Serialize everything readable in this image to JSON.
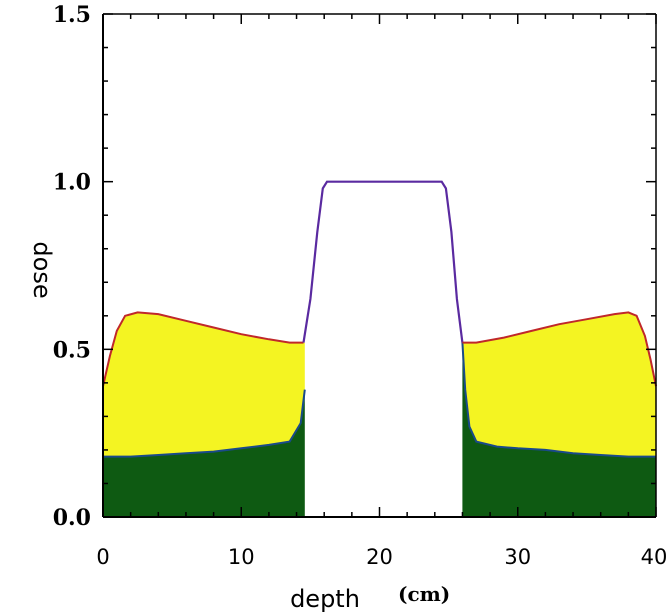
{
  "chart_data": {
    "type": "area",
    "xlabel": "depth",
    "xlabel_unit": "(cm)",
    "ylabel": "dose",
    "xlim": [
      0,
      40
    ],
    "ylim": [
      0,
      1.5
    ],
    "x_ticks": [
      "0",
      "10",
      "20",
      "30",
      "40"
    ],
    "y_ticks": [
      "0.0",
      "0.5",
      "1.0",
      "1.5"
    ],
    "grid": false,
    "colors": {
      "lower_fill": "#0e5a12",
      "middle_fill": "#f4f422",
      "total_line": "#c0282a",
      "lower_line": "#1a4a8a",
      "plateau_line": "#5a2aa0"
    },
    "series": [
      {
        "points": [
          [
            0,
            0.39
          ],
          [
            0.5,
            0.48
          ],
          [
            1,
            0.555
          ],
          [
            1.6,
            0.6
          ],
          [
            2.5,
            0.61
          ],
          [
            4,
            0.605
          ],
          [
            6,
            0.585
          ],
          [
            8,
            0.565
          ],
          [
            10,
            0.545
          ],
          [
            12,
            0.53
          ],
          [
            13.5,
            0.52
          ],
          [
            14.5,
            0.52
          ],
          [
            15,
            0.65
          ],
          [
            15.5,
            0.85
          ],
          [
            15.9,
            0.98
          ],
          [
            16.2,
            1.0
          ],
          [
            24.5,
            1.0
          ],
          [
            24.8,
            0.98
          ],
          [
            25.2,
            0.85
          ],
          [
            25.6,
            0.65
          ],
          [
            26.0,
            0.52
          ],
          [
            27,
            0.52
          ],
          [
            29,
            0.535
          ],
          [
            31,
            0.555
          ],
          [
            33,
            0.575
          ],
          [
            35,
            0.59
          ],
          [
            37,
            0.605
          ],
          [
            38,
            0.61
          ],
          [
            38.6,
            0.6
          ],
          [
            39.2,
            0.54
          ],
          [
            39.6,
            0.47
          ],
          [
            40,
            0.39
          ]
        ]
      },
      {
        "points": [
          [
            0,
            0.18
          ],
          [
            2,
            0.18
          ],
          [
            4,
            0.185
          ],
          [
            6,
            0.19
          ],
          [
            8,
            0.195
          ],
          [
            10,
            0.205
          ],
          [
            12,
            0.215
          ],
          [
            13.5,
            0.225
          ],
          [
            14.3,
            0.28
          ],
          [
            14.6,
            0.38
          ],
          [
            14.8,
            0.52
          ],
          [
            26.0,
            0.52
          ],
          [
            26.2,
            0.38
          ],
          [
            26.5,
            0.27
          ],
          [
            27,
            0.225
          ],
          [
            28.5,
            0.21
          ],
          [
            30,
            0.205
          ],
          [
            32,
            0.2
          ],
          [
            34,
            0.19
          ],
          [
            36,
            0.185
          ],
          [
            38,
            0.18
          ],
          [
            40,
            0.18
          ]
        ]
      }
    ],
    "plateau_fill_range": [
      14.6,
      26.0
    ]
  }
}
